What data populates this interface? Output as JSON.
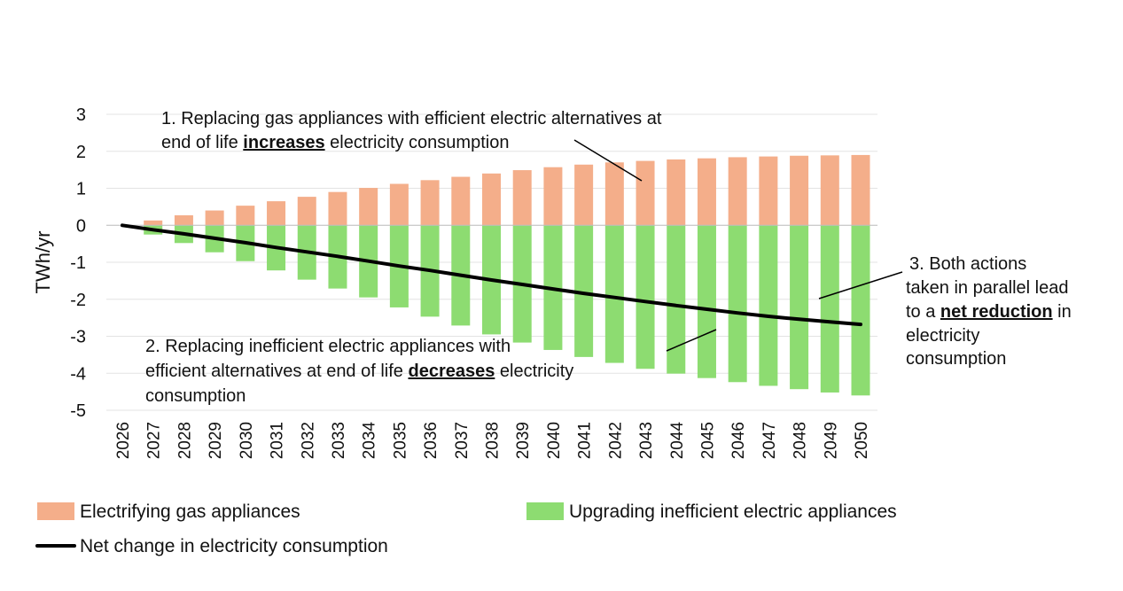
{
  "chart_data": {
    "type": "bar",
    "stacked": true,
    "title": "",
    "xlabel": "",
    "ylabel": "TWh/yr",
    "ylim": [
      -5,
      3
    ],
    "yticks": [
      3,
      2,
      1,
      0,
      -1,
      -2,
      -3,
      -4,
      -5
    ],
    "grid": true,
    "categories": [
      "2026",
      "2027",
      "2028",
      "2029",
      "2030",
      "2031",
      "2032",
      "2033",
      "2034",
      "2035",
      "2036",
      "2037",
      "2038",
      "2039",
      "2040",
      "2041",
      "2042",
      "2043",
      "2044",
      "2045",
      "2046",
      "2047",
      "2048",
      "2049",
      "2050"
    ],
    "series": [
      {
        "name": "Electrifying gas appliances",
        "type": "bar",
        "color": "#f4ae8a",
        "values": [
          0,
          0.13,
          0.27,
          0.4,
          0.53,
          0.65,
          0.77,
          0.9,
          1.01,
          1.12,
          1.22,
          1.31,
          1.4,
          1.49,
          1.57,
          1.64,
          1.7,
          1.74,
          1.78,
          1.81,
          1.84,
          1.86,
          1.88,
          1.89,
          1.9
        ]
      },
      {
        "name": "Upgrading inefficient electric appliances",
        "type": "bar",
        "color": "#8ddc71",
        "values": [
          0,
          -0.25,
          -0.48,
          -0.73,
          -0.97,
          -1.22,
          -1.47,
          -1.71,
          -1.95,
          -2.22,
          -2.47,
          -2.71,
          -2.95,
          -3.17,
          -3.37,
          -3.56,
          -3.72,
          -3.88,
          -4.01,
          -4.13,
          -4.24,
          -4.34,
          -4.43,
          -4.52,
          -4.6
        ]
      },
      {
        "name": "Net change in electricity consumption",
        "type": "line",
        "color": "#000000",
        "values": [
          0,
          -0.12,
          -0.23,
          -0.35,
          -0.47,
          -0.6,
          -0.72,
          -0.84,
          -0.97,
          -1.1,
          -1.22,
          -1.35,
          -1.48,
          -1.6,
          -1.72,
          -1.84,
          -1.95,
          -2.06,
          -2.17,
          -2.27,
          -2.37,
          -2.46,
          -2.54,
          -2.61,
          -2.68
        ]
      }
    ],
    "annotations": {
      "a1": {
        "line1": "1. Replacing gas appliances with efficient electric alternatives at",
        "line2_pre": "end of life ",
        "line2_bold": "increases",
        "line2_post": " electricity consumption"
      },
      "a2": {
        "line1": "2. Replacing inefficient electric appliances with",
        "line2_pre": "efficient alternatives at end of life ",
        "line2_bold": "decreases",
        "line2_post": " electricity",
        "line3": "consumption"
      },
      "a3": {
        "line1": "3. Both actions",
        "line2": "taken in parallel lead",
        "line3_pre": "to a ",
        "line3_bold": "net reduction",
        "line3_post": " in",
        "line4": "electricity",
        "line5": "consumption"
      }
    },
    "legend": {
      "placement": "bottom",
      "items": [
        "Electrifying gas appliances",
        "Upgrading inefficient electric appliances",
        "Net change in electricity consumption"
      ]
    }
  }
}
